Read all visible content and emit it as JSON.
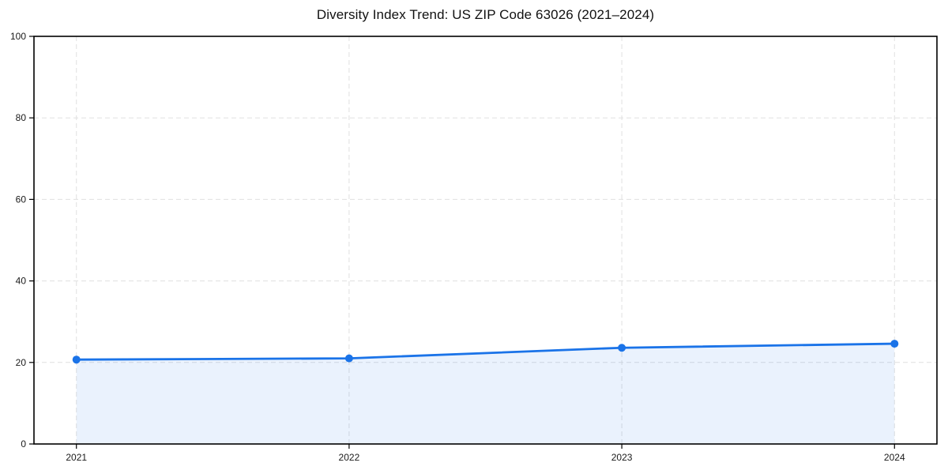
{
  "chart_data": {
    "type": "area",
    "title": "Diversity Index Trend: US ZIP Code 63026 (2021–2024)",
    "categories": [
      "2021",
      "2022",
      "2023",
      "2024"
    ],
    "series": [
      {
        "name": "Diversity Index",
        "values": [
          20.7,
          21.0,
          23.6,
          24.6
        ]
      }
    ],
    "xlabel": "",
    "ylabel": "",
    "ylim": [
      0,
      100
    ],
    "yticks": [
      0,
      20,
      40,
      60,
      80,
      100
    ],
    "grid": true,
    "grid_style": "dashed",
    "legend_position": "none",
    "colors": {
      "line": "#1a73e8",
      "fill": "#1a73e8",
      "fill_opacity": 0.09,
      "grid": "#e0e0e0",
      "spine": "#000000",
      "text": "#1a1a1a",
      "background": "#ffffff"
    }
  }
}
